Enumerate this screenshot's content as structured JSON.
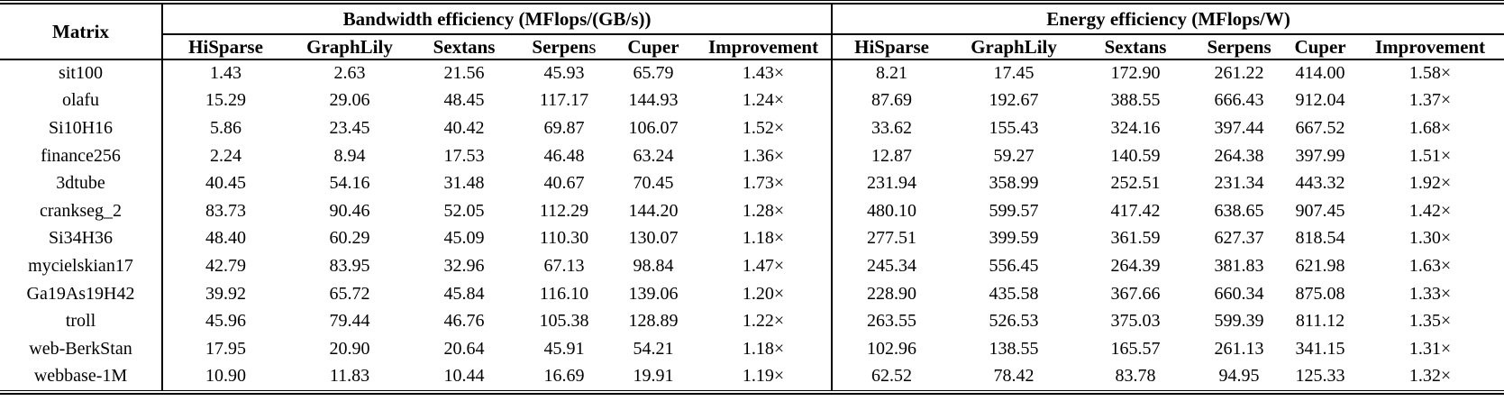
{
  "colors": {
    "text": "#000000",
    "rule": "#000000",
    "background": "#ffffff"
  },
  "table": {
    "corner_header": "Matrix",
    "groups": [
      {
        "title": "Bandwidth efficiency (MFlops/(GB/s))",
        "columns": [
          {
            "b": "HiSparse",
            "r": ""
          },
          {
            "b": "GraphLily",
            "r": ""
          },
          {
            "b": "Sextans",
            "r": ""
          },
          {
            "b": "Serpen",
            "r": "s"
          },
          {
            "b": "Cuper",
            "r": ""
          },
          {
            "b": "Improvement",
            "r": ""
          }
        ]
      },
      {
        "title": "Energy efficiency (MFlops/W)",
        "columns": [
          {
            "b": "HiSparse",
            "r": ""
          },
          {
            "b": "GraphLily",
            "r": ""
          },
          {
            "b": "Sextans",
            "r": ""
          },
          {
            "b": "Serpens",
            "r": ""
          },
          {
            "b": "Cuper",
            "r": ""
          },
          {
            "b": "Improvement",
            "r": ""
          }
        ]
      }
    ],
    "rows": [
      {
        "matrix": "sit100",
        "bandwidth": [
          "1.43",
          "2.63",
          "21.56",
          "45.93",
          "65.79",
          "1.43×"
        ],
        "energy": [
          "8.21",
          "17.45",
          "172.90",
          "261.22",
          "414.00",
          "1.58×"
        ]
      },
      {
        "matrix": "olafu",
        "bandwidth": [
          "15.29",
          "29.06",
          "48.45",
          "117.17",
          "144.93",
          "1.24×"
        ],
        "energy": [
          "87.69",
          "192.67",
          "388.55",
          "666.43",
          "912.04",
          "1.37×"
        ]
      },
      {
        "matrix": "Si10H16",
        "bandwidth": [
          "5.86",
          "23.45",
          "40.42",
          "69.87",
          "106.07",
          "1.52×"
        ],
        "energy": [
          "33.62",
          "155.43",
          "324.16",
          "397.44",
          "667.52",
          "1.68×"
        ]
      },
      {
        "matrix": "finance256",
        "bandwidth": [
          "2.24",
          "8.94",
          "17.53",
          "46.48",
          "63.24",
          "1.36×"
        ],
        "energy": [
          "12.87",
          "59.27",
          "140.59",
          "264.38",
          "397.99",
          "1.51×"
        ]
      },
      {
        "matrix": "3dtube",
        "bandwidth": [
          "40.45",
          "54.16",
          "31.48",
          "40.67",
          "70.45",
          "1.73×"
        ],
        "energy": [
          "231.94",
          "358.99",
          "252.51",
          "231.34",
          "443.32",
          "1.92×"
        ]
      },
      {
        "matrix": "crankseg_2",
        "bandwidth": [
          "83.73",
          "90.46",
          "52.05",
          "112.29",
          "144.20",
          "1.28×"
        ],
        "energy": [
          "480.10",
          "599.57",
          "417.42",
          "638.65",
          "907.45",
          "1.42×"
        ]
      },
      {
        "matrix": "Si34H36",
        "bandwidth": [
          "48.40",
          "60.29",
          "45.09",
          "110.30",
          "130.07",
          "1.18×"
        ],
        "energy": [
          "277.51",
          "399.59",
          "361.59",
          "627.37",
          "818.54",
          "1.30×"
        ]
      },
      {
        "matrix": "mycielskian17",
        "bandwidth": [
          "42.79",
          "83.95",
          "32.96",
          "67.13",
          "98.84",
          "1.47×"
        ],
        "energy": [
          "245.34",
          "556.45",
          "264.39",
          "381.83",
          "621.98",
          "1.63×"
        ]
      },
      {
        "matrix": "Ga19As19H42",
        "bandwidth": [
          "39.92",
          "65.72",
          "45.84",
          "116.10",
          "139.06",
          "1.20×"
        ],
        "energy": [
          "228.90",
          "435.58",
          "367.66",
          "660.34",
          "875.08",
          "1.33×"
        ]
      },
      {
        "matrix": "troll",
        "bandwidth": [
          "45.96",
          "79.44",
          "46.76",
          "105.38",
          "128.89",
          "1.22×"
        ],
        "energy": [
          "263.55",
          "526.53",
          "375.03",
          "599.39",
          "811.12",
          "1.35×"
        ]
      },
      {
        "matrix": "web-BerkStan",
        "bandwidth": [
          "17.95",
          "20.90",
          "20.64",
          "45.91",
          "54.21",
          "1.18×"
        ],
        "energy": [
          "102.96",
          "138.55",
          "165.57",
          "261.13",
          "341.15",
          "1.31×"
        ]
      },
      {
        "matrix": "webbase-1M",
        "bandwidth": [
          "10.90",
          "11.83",
          "10.44",
          "16.69",
          "19.91",
          "1.19×"
        ],
        "energy": [
          "62.52",
          "78.42",
          "83.78",
          "94.95",
          "125.33",
          "1.32×"
        ]
      }
    ]
  }
}
